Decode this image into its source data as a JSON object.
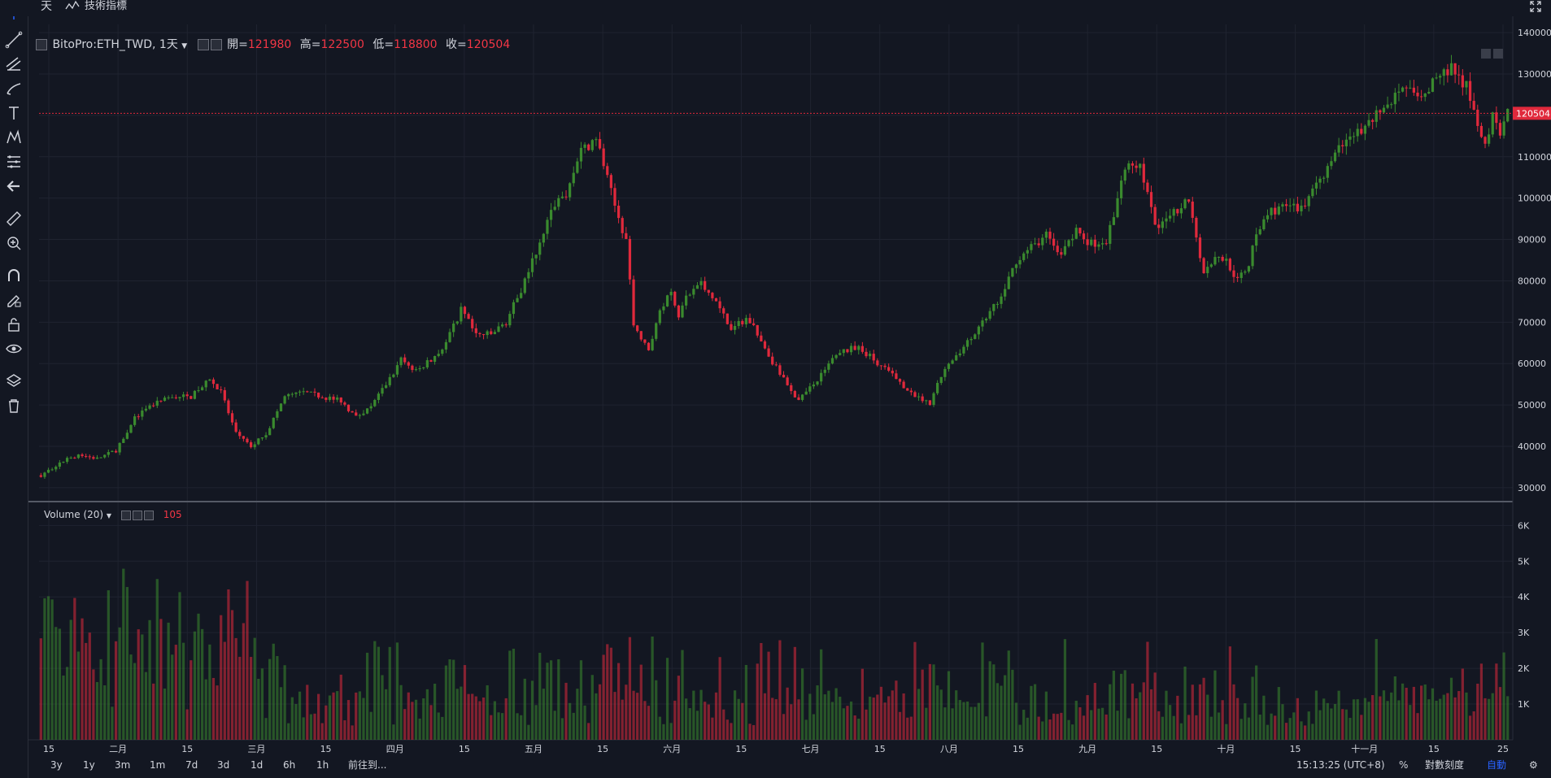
{
  "toolbar": {
    "interval_label": "天",
    "indicators_label": "技術指標"
  },
  "legend": {
    "symbol": "BitoPro:ETH_TWD, 1天",
    "open_label": "開=",
    "open": "121980",
    "high_label": "高=",
    "high": "122500",
    "low_label": "低=",
    "low": "118800",
    "close_label": "收=",
    "close": "120504"
  },
  "volume_legend": {
    "label": "Volume (20)",
    "value": "105"
  },
  "price_badge": "120504",
  "bottom": {
    "ranges": [
      "3y",
      "1y",
      "3m",
      "1m",
      "7d",
      "3d",
      "1d",
      "6h",
      "1h"
    ],
    "goto": "前往到...",
    "time": "15:13:25 (UTC+8)",
    "percent": "%",
    "log": "對數刻度",
    "auto": "自動"
  },
  "colors": {
    "up": "#3a8a2e",
    "down": "#e0293c",
    "background": "#131722",
    "grid": "#1f2330",
    "price_line": "#e0293c"
  },
  "chart_data": {
    "type": "candlestick",
    "price_axis": {
      "ticks": [
        140000,
        130000,
        120000,
        110000,
        100000,
        90000,
        80000,
        70000,
        60000,
        50000,
        40000,
        30000
      ],
      "tick_labels": [
        "140000",
        "130000",
        "",
        "110000",
        "100000",
        "90000",
        "80000",
        "70000",
        "60000",
        "50000",
        "40000",
        "30000"
      ],
      "range": [
        28000,
        142000
      ]
    },
    "volume_axis": {
      "ticks": [
        6000,
        5000,
        4000,
        3000,
        2000,
        1000
      ],
      "tick_labels": [
        "6K",
        "5K",
        "4K",
        "3K",
        "2K",
        "1K"
      ],
      "range": [
        0,
        6600
      ]
    },
    "x_labels": [
      "15",
      "二月",
      "15",
      "三月",
      "15",
      "四月",
      "15",
      "五月",
      "15",
      "六月",
      "15",
      "七月",
      "15",
      "八月",
      "15",
      "九月",
      "15",
      "十月",
      "15",
      "十一月",
      "15",
      "25"
    ],
    "price_path": [
      [
        0,
        33000
      ],
      [
        5,
        36000
      ],
      [
        10,
        38000
      ],
      [
        15,
        37000
      ],
      [
        20,
        39000
      ],
      [
        25,
        47000
      ],
      [
        30,
        50000
      ],
      [
        35,
        52000
      ],
      [
        40,
        52000
      ],
      [
        45,
        56000
      ],
      [
        48,
        53000
      ],
      [
        52,
        43000
      ],
      [
        56,
        40000
      ],
      [
        60,
        43000
      ],
      [
        65,
        52000
      ],
      [
        70,
        53000
      ],
      [
        75,
        52000
      ],
      [
        80,
        51000
      ],
      [
        84,
        47000
      ],
      [
        88,
        50000
      ],
      [
        92,
        55000
      ],
      [
        96,
        61000
      ],
      [
        100,
        58000
      ],
      [
        104,
        61000
      ],
      [
        108,
        65000
      ],
      [
        112,
        73000
      ],
      [
        116,
        67000
      ],
      [
        120,
        67000
      ],
      [
        124,
        70000
      ],
      [
        128,
        78000
      ],
      [
        132,
        87000
      ],
      [
        136,
        98000
      ],
      [
        140,
        101000
      ],
      [
        144,
        111000
      ],
      [
        148,
        115000
      ],
      [
        150,
        108000
      ],
      [
        153,
        98000
      ],
      [
        156,
        90000
      ],
      [
        158,
        70000
      ],
      [
        160,
        66000
      ],
      [
        162,
        63000
      ],
      [
        165,
        73000
      ],
      [
        168,
        77000
      ],
      [
        170,
        72000
      ],
      [
        172,
        76000
      ],
      [
        176,
        79000
      ],
      [
        180,
        75000
      ],
      [
        184,
        68000
      ],
      [
        188,
        71000
      ],
      [
        190,
        69000
      ],
      [
        194,
        62000
      ],
      [
        198,
        56000
      ],
      [
        202,
        51000
      ],
      [
        206,
        55000
      ],
      [
        210,
        60000
      ],
      [
        214,
        63000
      ],
      [
        218,
        64000
      ],
      [
        222,
        61000
      ],
      [
        226,
        58000
      ],
      [
        230,
        54000
      ],
      [
        234,
        52000
      ],
      [
        237,
        50000
      ],
      [
        240,
        57000
      ],
      [
        244,
        62000
      ],
      [
        248,
        66000
      ],
      [
        252,
        71000
      ],
      [
        256,
        76000
      ],
      [
        260,
        85000
      ],
      [
        264,
        88000
      ],
      [
        268,
        91000
      ],
      [
        272,
        86000
      ],
      [
        276,
        92000
      ],
      [
        280,
        89000
      ],
      [
        284,
        90000
      ],
      [
        286,
        95000
      ],
      [
        288,
        105000
      ],
      [
        290,
        109000
      ],
      [
        293,
        108000
      ],
      [
        296,
        97000
      ],
      [
        298,
        92000
      ],
      [
        300,
        96000
      ],
      [
        304,
        98000
      ],
      [
        306,
        100000
      ],
      [
        308,
        91000
      ],
      [
        310,
        82000
      ],
      [
        313,
        86000
      ],
      [
        316,
        85000
      ],
      [
        319,
        80000
      ],
      [
        322,
        84000
      ],
      [
        324,
        92000
      ],
      [
        328,
        97000
      ],
      [
        332,
        98000
      ],
      [
        336,
        97000
      ],
      [
        340,
        104000
      ],
      [
        344,
        108000
      ],
      [
        348,
        115000
      ],
      [
        352,
        116000
      ],
      [
        356,
        120000
      ],
      [
        360,
        124000
      ],
      [
        364,
        126000
      ],
      [
        368,
        124000
      ],
      [
        372,
        129000
      ],
      [
        376,
        131000
      ],
      [
        380,
        127000
      ],
      [
        383,
        117000
      ],
      [
        385,
        113000
      ],
      [
        387,
        120000
      ],
      [
        389,
        114000
      ],
      [
        391,
        120500
      ]
    ]
  }
}
